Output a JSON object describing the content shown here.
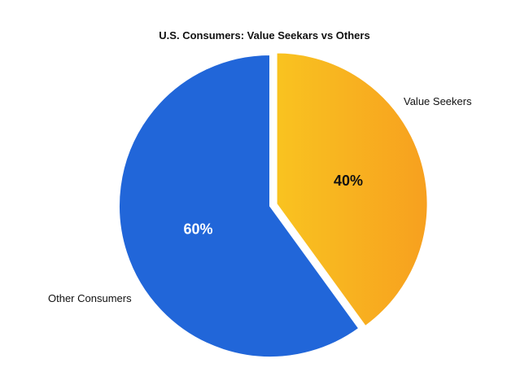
{
  "chart_data": {
    "type": "pie",
    "title": "U.S. Consumers: Value Seekars vs Others",
    "slices": [
      {
        "label": "Value Seekers",
        "value": 40,
        "value_label": "40%",
        "color": "#f9c320",
        "color_end": "#f7a01f",
        "text_color": "#111111",
        "exploded": true
      },
      {
        "label": "Other Consumers",
        "value": 60,
        "value_label": "60%",
        "color": "#2166d9",
        "text_color": "#ffffff",
        "exploded": false
      }
    ],
    "start": "12 o'clock",
    "direction": "clockwise",
    "legend": "none"
  }
}
